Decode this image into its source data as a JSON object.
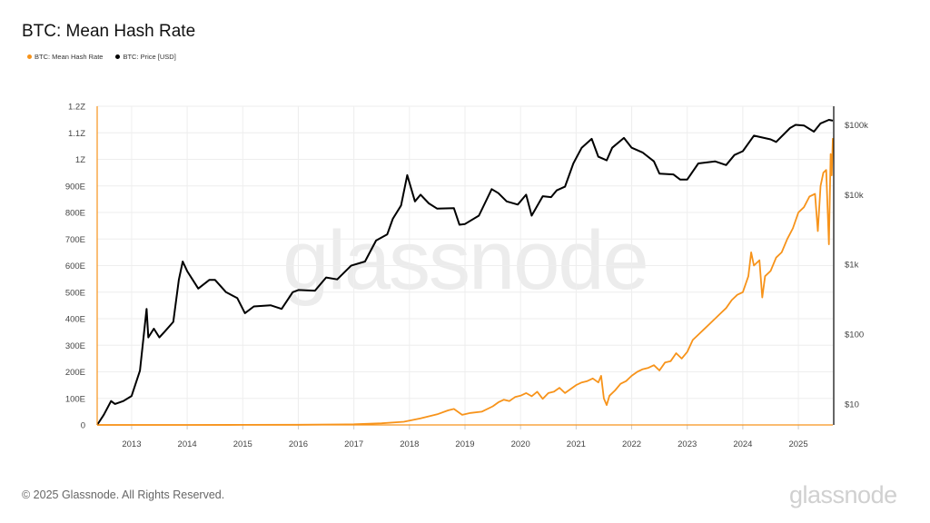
{
  "title": "BTC: Mean Hash Rate",
  "watermark": "glassnode",
  "footer": {
    "copyright": "© 2025 Glassnode. All Rights Reserved.",
    "logo": "glassnode"
  },
  "colors": {
    "hash_rate": "#f7931a",
    "price": "#000000",
    "grid": "#eeeeee"
  },
  "chart_data": {
    "type": "line",
    "title": "BTC: Mean Hash Rate",
    "legend": [
      {
        "name": "BTC: Mean Hash Rate",
        "color": "#f7931a"
      },
      {
        "name": "BTC: Price [USD]",
        "color": "#000000"
      }
    ],
    "legend_placement": "top-left",
    "grid": true,
    "xlim": [
      2012.38,
      2025.62
    ],
    "x_ticks": [
      "2013",
      "2014",
      "2015",
      "2016",
      "2017",
      "2018",
      "2019",
      "2020",
      "2021",
      "2022",
      "2023",
      "2024",
      "2025"
    ],
    "y_left": {
      "scale": "linear",
      "unit": "EH/s",
      "lim": [
        0,
        1200
      ],
      "ticks": [
        {
          "v": 0,
          "label": "0"
        },
        {
          "v": 100,
          "label": "100E"
        },
        {
          "v": 200,
          "label": "200E"
        },
        {
          "v": 300,
          "label": "300E"
        },
        {
          "v": 400,
          "label": "400E"
        },
        {
          "v": 500,
          "label": "500E"
        },
        {
          "v": 600,
          "label": "600E"
        },
        {
          "v": 700,
          "label": "700E"
        },
        {
          "v": 800,
          "label": "800E"
        },
        {
          "v": 900,
          "label": "900E"
        },
        {
          "v": 1000,
          "label": "1Z"
        },
        {
          "v": 1100,
          "label": "1.1Z"
        },
        {
          "v": 1200,
          "label": "1.2Z"
        }
      ]
    },
    "y_right": {
      "scale": "log",
      "lim": [
        5,
        185000
      ],
      "ticks": [
        {
          "v": 10,
          "label": "$10"
        },
        {
          "v": 100,
          "label": "$100"
        },
        {
          "v": 1000,
          "label": "$1k"
        },
        {
          "v": 10000,
          "label": "$10k"
        },
        {
          "v": 100000,
          "label": "$100k"
        }
      ]
    },
    "series": [
      {
        "name": "BTC: Mean Hash Rate",
        "axis": "left",
        "x": [
          2012.38,
          2013,
          2014,
          2015,
          2016,
          2017,
          2017.5,
          2017.9,
          2018.2,
          2018.5,
          2018.7,
          2018.8,
          2018.95,
          2019.1,
          2019.3,
          2019.5,
          2019.6,
          2019.7,
          2019.8,
          2019.9,
          2020.0,
          2020.1,
          2020.2,
          2020.3,
          2020.4,
          2020.5,
          2020.6,
          2020.7,
          2020.8,
          2020.9,
          2021.0,
          2021.1,
          2021.2,
          2021.3,
          2021.4,
          2021.45,
          2021.5,
          2021.55,
          2021.6,
          2021.7,
          2021.8,
          2021.9,
          2022.0,
          2022.1,
          2022.2,
          2022.3,
          2022.4,
          2022.5,
          2022.6,
          2022.7,
          2022.8,
          2022.9,
          2023.0,
          2023.1,
          2023.2,
          2023.3,
          2023.4,
          2023.5,
          2023.6,
          2023.7,
          2023.8,
          2023.9,
          2024.0,
          2024.1,
          2024.15,
          2024.2,
          2024.3,
          2024.35,
          2024.4,
          2024.5,
          2024.6,
          2024.7,
          2024.8,
          2024.9,
          2025.0,
          2025.1,
          2025.2,
          2025.3,
          2025.35,
          2025.4,
          2025.45,
          2025.5,
          2025.55,
          2025.58,
          2025.6,
          2025.62
        ],
        "y": [
          0.01,
          0.02,
          0.01,
          0.3,
          0.8,
          2.5,
          6,
          12,
          25,
          40,
          55,
          60,
          38,
          45,
          50,
          70,
          85,
          95,
          90,
          105,
          110,
          120,
          108,
          125,
          98,
          120,
          125,
          140,
          120,
          135,
          150,
          160,
          165,
          175,
          160,
          185,
          100,
          75,
          110,
          130,
          155,
          165,
          185,
          200,
          210,
          215,
          225,
          205,
          235,
          240,
          270,
          250,
          275,
          320,
          340,
          360,
          380,
          400,
          420,
          440,
          470,
          490,
          500,
          560,
          650,
          600,
          620,
          480,
          560,
          580,
          630,
          650,
          700,
          740,
          800,
          820,
          860,
          870,
          730,
          900,
          950,
          960,
          680,
          1020,
          940,
          1080
        ]
      },
      {
        "name": "BTC: Price [USD]",
        "axis": "right",
        "x": [
          2012.38,
          2012.5,
          2012.63,
          2012.7,
          2012.85,
          2013.0,
          2013.15,
          2013.27,
          2013.3,
          2013.4,
          2013.5,
          2013.6,
          2013.75,
          2013.85,
          2013.92,
          2014.0,
          2014.1,
          2014.2,
          2014.4,
          2014.5,
          2014.7,
          2014.9,
          2015.04,
          2015.2,
          2015.5,
          2015.7,
          2015.9,
          2016.0,
          2016.3,
          2016.5,
          2016.7,
          2016.95,
          2017.2,
          2017.4,
          2017.6,
          2017.7,
          2017.85,
          2017.96,
          2018.1,
          2018.2,
          2018.35,
          2018.5,
          2018.8,
          2018.9,
          2019.0,
          2019.25,
          2019.48,
          2019.6,
          2019.75,
          2019.95,
          2020.1,
          2020.2,
          2020.4,
          2020.55,
          2020.65,
          2020.8,
          2020.95,
          2021.1,
          2021.28,
          2021.4,
          2021.55,
          2021.65,
          2021.86,
          2022.0,
          2022.2,
          2022.4,
          2022.5,
          2022.75,
          2022.87,
          2023.0,
          2023.2,
          2023.5,
          2023.7,
          2023.85,
          2024.0,
          2024.2,
          2024.5,
          2024.6,
          2024.85,
          2024.95,
          2025.1,
          2025.28,
          2025.4,
          2025.55,
          2025.62
        ],
        "y": [
          5,
          7,
          11,
          10,
          11,
          13,
          30,
          230,
          90,
          120,
          90,
          110,
          150,
          600,
          1100,
          800,
          600,
          450,
          600,
          600,
          400,
          330,
          200,
          250,
          260,
          230,
          400,
          430,
          420,
          650,
          610,
          960,
          1100,
          2200,
          2700,
          4500,
          7000,
          19000,
          8000,
          10000,
          7500,
          6300,
          6400,
          3700,
          3800,
          5000,
          12000,
          10500,
          8000,
          7200,
          10000,
          5000,
          9500,
          9200,
          11500,
          13000,
          28000,
          47000,
          63000,
          35000,
          31000,
          47000,
          65000,
          47000,
          40000,
          30000,
          20000,
          19500,
          16500,
          16500,
          28000,
          30000,
          26500,
          37000,
          42000,
          70000,
          62000,
          57000,
          90000,
          100000,
          98000,
          80000,
          105000,
          118000,
          115000
        ]
      }
    ]
  }
}
